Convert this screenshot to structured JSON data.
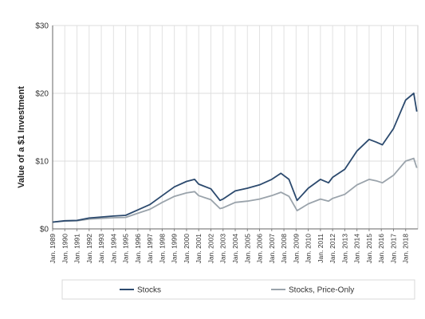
{
  "chart_data": {
    "type": "line",
    "title": "",
    "xlabel": "",
    "ylabel": "Value of a $1 Investment",
    "ylim": [
      0,
      30
    ],
    "xlim": [
      "1989-01",
      "2019-01"
    ],
    "y_ticks": [
      0,
      10,
      20,
      30
    ],
    "y_tick_labels": [
      "$0",
      "$10",
      "$20",
      "$30"
    ],
    "x_tick_labels": [
      "Jan. 1989",
      "Jan. 1990",
      "Jan. 1991",
      "Jan. 1992",
      "Jan. 1993",
      "Jan. 1994",
      "Jan. 1995",
      "Jan. 1996",
      "Jan. 1997",
      "Jan. 1998",
      "Jan. 1999",
      "Jan. 2000",
      "Jan. 2001",
      "Jan. 2002",
      "Jan. 2003",
      "Jan. 2004",
      "Jan. 2005",
      "Jan. 2006",
      "Jan. 2007",
      "Jan. 2008",
      "Jan. 2009",
      "Jan. 2010",
      "Jan. 2011",
      "Jan. 2012",
      "Jan. 2013",
      "Jan. 2014",
      "Jan. 2015",
      "Jan. 2016",
      "Jan. 2017",
      "Jan. 2018"
    ],
    "grid": true,
    "legend": "bottom",
    "series": [
      {
        "name": "Stocks",
        "color": "#2c4a6e",
        "points": [
          [
            "1989-01",
            1.0
          ],
          [
            "1990-01",
            1.2
          ],
          [
            "1991-01",
            1.25
          ],
          [
            "1992-01",
            1.6
          ],
          [
            "1993-01",
            1.75
          ],
          [
            "1994-01",
            1.9
          ],
          [
            "1995-01",
            2.0
          ],
          [
            "1996-01",
            2.8
          ],
          [
            "1997-01",
            3.6
          ],
          [
            "1998-01",
            4.9
          ],
          [
            "1999-01",
            6.2
          ],
          [
            "2000-01",
            7.0
          ],
          [
            "2000-09",
            7.3
          ],
          [
            "2001-01",
            6.6
          ],
          [
            "2002-01",
            5.9
          ],
          [
            "2002-10",
            4.2
          ],
          [
            "2003-01",
            4.4
          ],
          [
            "2004-01",
            5.6
          ],
          [
            "2005-01",
            6.0
          ],
          [
            "2006-01",
            6.5
          ],
          [
            "2007-01",
            7.3
          ],
          [
            "2007-10",
            8.2
          ],
          [
            "2008-06",
            7.3
          ],
          [
            "2009-02",
            4.2
          ],
          [
            "2010-01",
            6.0
          ],
          [
            "2011-01",
            7.3
          ],
          [
            "2011-09",
            6.8
          ],
          [
            "2012-01",
            7.6
          ],
          [
            "2013-01",
            8.8
          ],
          [
            "2014-01",
            11.5
          ],
          [
            "2015-01",
            13.2
          ],
          [
            "2015-08",
            12.8
          ],
          [
            "2016-02",
            12.4
          ],
          [
            "2017-01",
            14.8
          ],
          [
            "2018-01",
            19.0
          ],
          [
            "2018-09",
            20.0
          ],
          [
            "2018-12",
            17.3
          ]
        ]
      },
      {
        "name": "Stocks, Price-Only",
        "color": "#9aa3ab",
        "points": [
          [
            "1989-01",
            1.0
          ],
          [
            "1990-01",
            1.15
          ],
          [
            "1991-01",
            1.2
          ],
          [
            "1992-01",
            1.45
          ],
          [
            "1993-01",
            1.55
          ],
          [
            "1994-01",
            1.65
          ],
          [
            "1995-01",
            1.7
          ],
          [
            "1996-01",
            2.3
          ],
          [
            "1997-01",
            2.9
          ],
          [
            "1998-01",
            3.9
          ],
          [
            "1999-01",
            4.8
          ],
          [
            "2000-01",
            5.3
          ],
          [
            "2000-09",
            5.5
          ],
          [
            "2001-01",
            4.9
          ],
          [
            "2002-01",
            4.3
          ],
          [
            "2002-10",
            3.0
          ],
          [
            "2003-01",
            3.1
          ],
          [
            "2004-01",
            3.9
          ],
          [
            "2005-01",
            4.1
          ],
          [
            "2006-01",
            4.4
          ],
          [
            "2007-01",
            4.9
          ],
          [
            "2007-10",
            5.4
          ],
          [
            "2008-06",
            4.8
          ],
          [
            "2009-02",
            2.7
          ],
          [
            "2010-01",
            3.7
          ],
          [
            "2011-01",
            4.4
          ],
          [
            "2011-09",
            4.1
          ],
          [
            "2012-01",
            4.5
          ],
          [
            "2013-01",
            5.1
          ],
          [
            "2014-01",
            6.5
          ],
          [
            "2015-01",
            7.3
          ],
          [
            "2015-08",
            7.1
          ],
          [
            "2016-02",
            6.8
          ],
          [
            "2017-01",
            7.9
          ],
          [
            "2018-01",
            10.0
          ],
          [
            "2018-09",
            10.4
          ],
          [
            "2018-12",
            9.0
          ]
        ]
      }
    ]
  }
}
